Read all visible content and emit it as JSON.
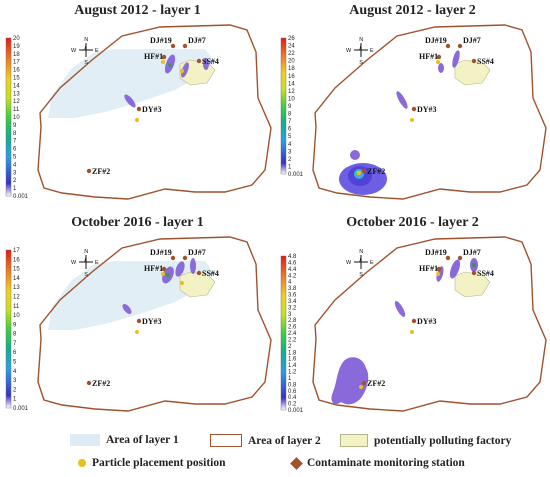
{
  "panels": [
    {
      "title": "August 2012 - layer 1",
      "colorbar": {
        "ticks": [
          "20",
          "19",
          "18",
          "17",
          "16",
          "15",
          "14",
          "13",
          "12",
          "11",
          "10",
          "9",
          "8",
          "7",
          "6",
          "5",
          "4",
          "3",
          "2",
          "1",
          "0.001"
        ]
      },
      "stations": [
        "DJ#19",
        "DJ#7",
        "HF#1",
        "SS#4",
        "DY#3",
        "ZF#2"
      ]
    },
    {
      "title": "August 2012 - layer 2",
      "colorbar": {
        "ticks": [
          "26",
          "24",
          "22",
          "20",
          "18",
          "16",
          "14",
          "12",
          "10",
          "9",
          "8",
          "7",
          "6",
          "5",
          "4",
          "3",
          "2",
          "1",
          "0.001"
        ]
      },
      "stations": [
        "DJ#19",
        "DJ#7",
        "HF#1",
        "SS#4",
        "DY#3",
        "ZF#2"
      ]
    },
    {
      "title": "October 2016 - layer 1",
      "colorbar": {
        "ticks": [
          "17",
          "16",
          "15",
          "14",
          "13",
          "12",
          "11",
          "10",
          "9",
          "8",
          "7",
          "6",
          "5",
          "4",
          "3",
          "2",
          "1",
          "0.001"
        ]
      },
      "stations": [
        "DJ#19",
        "DJ#7",
        "HF#1",
        "SS#4",
        "DY#3",
        "ZF#2"
      ]
    },
    {
      "title": "October 2016 - layer 2",
      "colorbar": {
        "ticks": [
          "4.8",
          "4.6",
          "4.4",
          "4.2",
          "4",
          "3.8",
          "3.6",
          "3.4",
          "3.2",
          "3",
          "2.8",
          "2.6",
          "2.4",
          "2.2",
          "2",
          "1.8",
          "1.6",
          "1.4",
          "1.2",
          "1",
          "0.8",
          "0.6",
          "0.4",
          "0.2",
          "0.001"
        ]
      },
      "stations": [
        "DJ#19",
        "DJ#7",
        "HF#1",
        "SS#4",
        "DY#3",
        "ZF#2"
      ]
    }
  ],
  "compass": {
    "n": "N",
    "s": "S",
    "e": "E",
    "w": "W"
  },
  "legend": {
    "layer1": "Area of layer 1",
    "layer2": "Area of layer 2",
    "factory": "potentially polluting factory",
    "particle": "Particle placement position",
    "station": "Contaminate monitoring station"
  },
  "colors": {
    "layer1_fill": "#dcebf4",
    "layer2_outline": "#a0522d",
    "factory_fill": "#f2f2c4",
    "factory_edge": "#b5b58a",
    "particle": "#e8c01a",
    "station": "#a0522d",
    "plume": "#7a55d6"
  }
}
